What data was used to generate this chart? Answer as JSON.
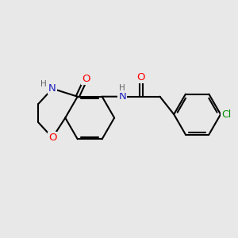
{
  "bg_color": "#e8e8e8",
  "bond_color": "#000000",
  "bond_width": 1.5,
  "atom_colors": {
    "N": "#2020c0",
    "O": "#ff0000",
    "Cl": "#009000",
    "H": "#606060",
    "C": "#000000"
  },
  "font_size": 8.5,
  "fig_width": 3.0,
  "fig_height": 3.0,
  "dpi": 100
}
